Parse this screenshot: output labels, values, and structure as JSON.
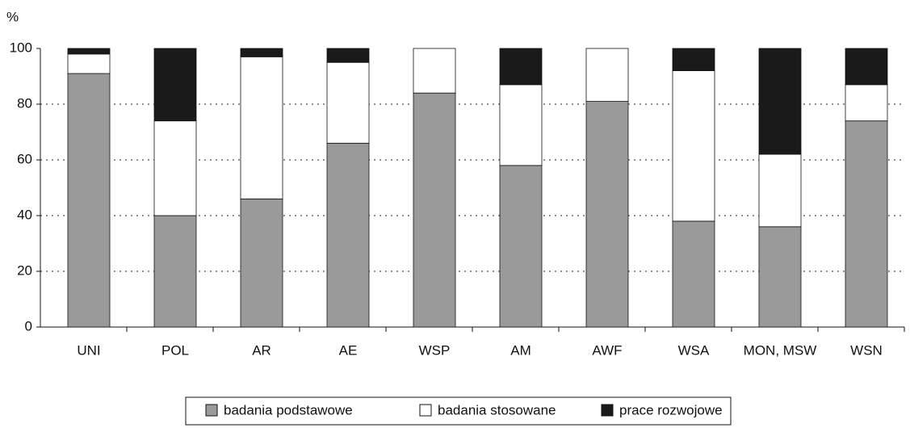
{
  "chart_data": {
    "type": "stacked_bar",
    "ylabel": "%",
    "categories": [
      "UNI",
      "POL",
      "AR",
      "AE",
      "WSP",
      "AM",
      "AWF",
      "WSA",
      "MON, MSW",
      "WSN"
    ],
    "series": [
      {
        "name": "badania podstawowe",
        "color": "#9a9a9a",
        "values": [
          91,
          40,
          46,
          66,
          84,
          58,
          81,
          38,
          36,
          74
        ]
      },
      {
        "name": "badania stosowane",
        "color": "#ffffff",
        "values": [
          7,
          34,
          51,
          29,
          16,
          29,
          19,
          54,
          26,
          13
        ]
      },
      {
        "name": "prace rozwojowe",
        "color": "#1a1a1a",
        "values": [
          2,
          26,
          3,
          5,
          0,
          13,
          0,
          8,
          38,
          13
        ]
      }
    ],
    "ylim": [
      0,
      100
    ],
    "yticks": [
      0,
      20,
      40,
      60,
      80,
      100
    ],
    "grid": true
  }
}
